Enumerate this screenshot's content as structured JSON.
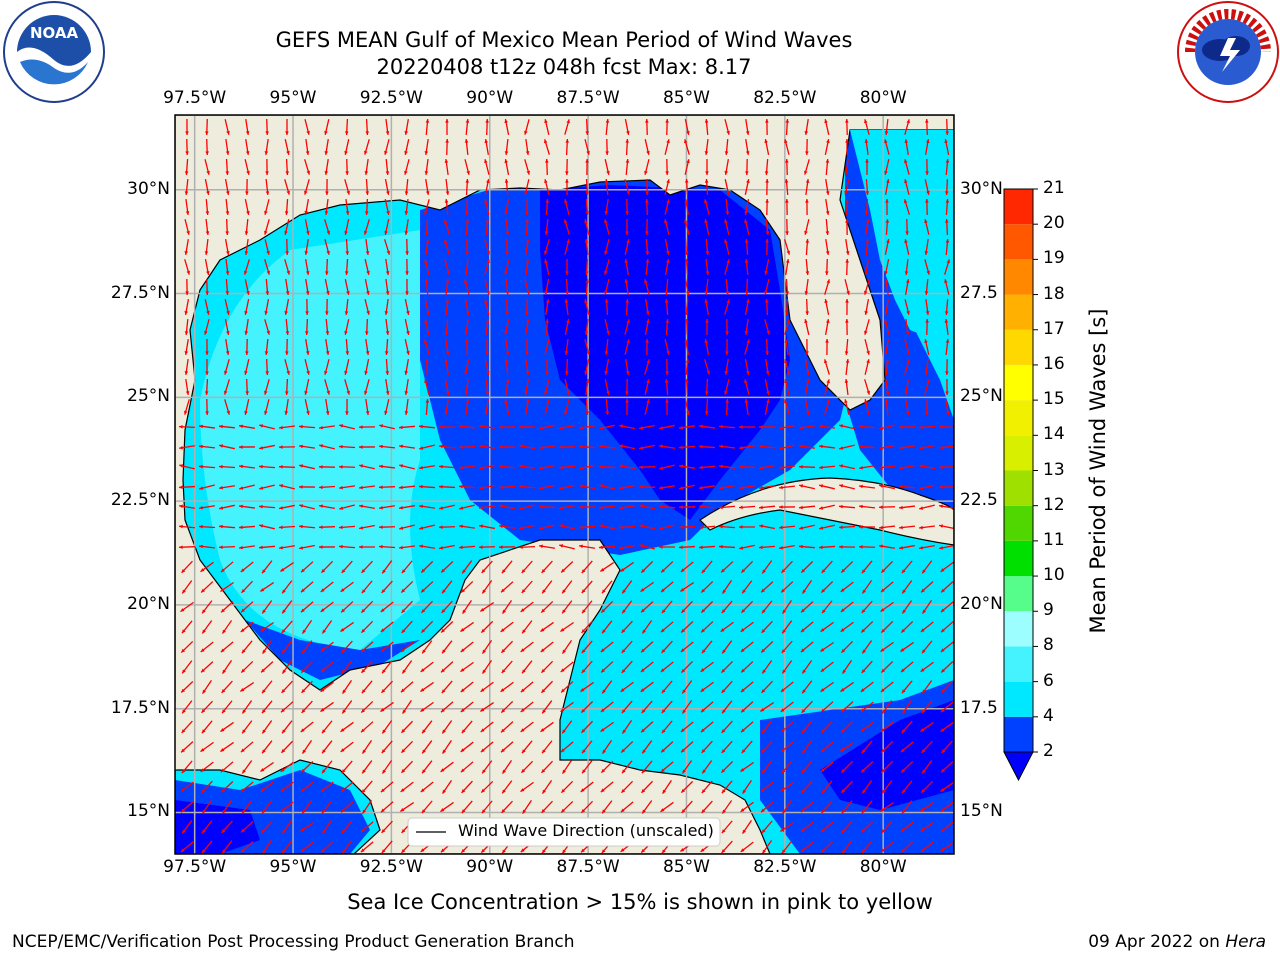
{
  "title": {
    "line1": "GEFS MEAN Gulf of Mexico Mean Period of Wind Waves",
    "line2": "20220408 t12z 048h fcst   Max: 8.17"
  },
  "map": {
    "lon_ticks": [
      "97.5°W",
      "95°W",
      "92.5°W",
      "90°W",
      "87.5°W",
      "85°W",
      "82.5°W",
      "80°W"
    ],
    "lat_ticks_left": [
      "30°N",
      "27.5°N",
      "25°N",
      "22.5°N",
      "20°N",
      "17.5°N",
      "15°N"
    ],
    "lat_ticks_right": [
      "30°N",
      "27.5",
      "25°N",
      "22.5",
      "20°N",
      "17.5",
      "15°N"
    ],
    "legend_label": "Wind Wave Direction (unscaled)",
    "extent": {
      "lon_min": -98,
      "lon_max": -78.2,
      "lat_min": 14,
      "lat_max": 31.8
    },
    "colors": {
      "land": "#eeecdc",
      "coast": "#000000",
      "grid": "#b0b0b0",
      "arrow": "#ff0000"
    }
  },
  "colorbar": {
    "title": "Mean Period of Wind Waves [s]",
    "levels": [
      "2",
      "4",
      "6",
      "8",
      "9",
      "10",
      "11",
      "12",
      "13",
      "14",
      "15",
      "16",
      "17",
      "18",
      "19",
      "20",
      "21"
    ],
    "colors": [
      "#0040ff",
      "#00e8ff",
      "#45f3ff",
      "#9cfeff",
      "#57fd8a",
      "#00e000",
      "#50d600",
      "#a0e000",
      "#d8f000",
      "#f0f000",
      "#ffff00",
      "#ffd800",
      "#ffb000",
      "#ff8800",
      "#ff5800",
      "#ff2800"
    ],
    "under_color": "#0000ff"
  },
  "footer": {
    "note": "Sea Ice Concentration > 15% is shown in pink to yellow",
    "branch": "NCEP/EMC/Verification Post Processing Product Generation Branch",
    "date": "09 Apr 2022 on ",
    "machine": "Hera"
  },
  "logos": {
    "left": "noaa-logo",
    "right": "nws-logo"
  }
}
